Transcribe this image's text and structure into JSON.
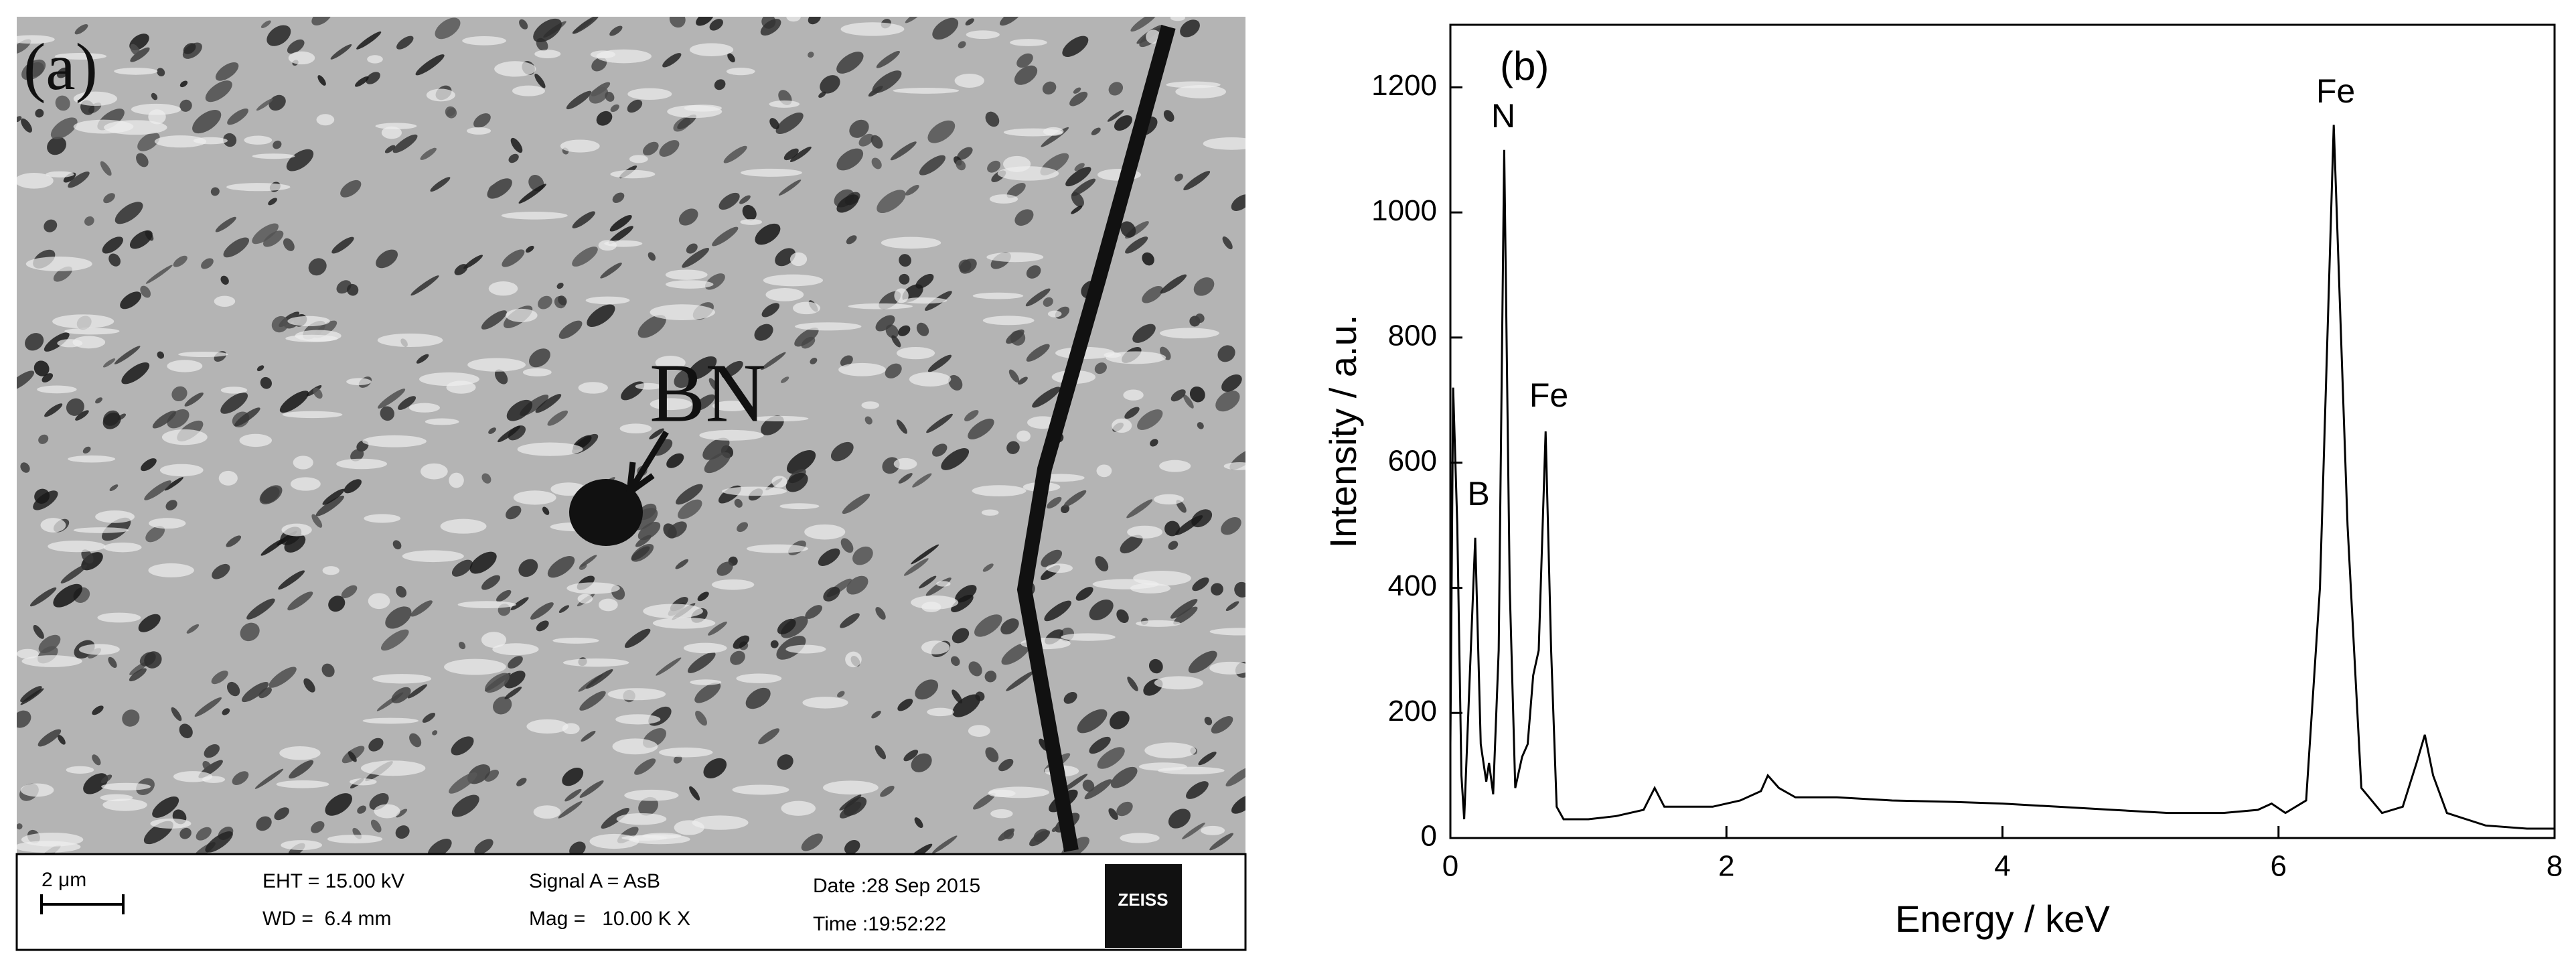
{
  "panel_a": {
    "label": "(a)",
    "annotation": "BN",
    "info_bar": {
      "scale": "2 μm",
      "eht": "EHT = 15.00 kV",
      "wd": "WD =  6.4 mm",
      "signal": "Signal A = AsB",
      "mag": "Mag =   10.00 K X",
      "date": "Date :28 Sep 2015",
      "time": "Time :19:52:22",
      "logo": "ZEISS"
    }
  },
  "chart_data": {
    "type": "line",
    "label": "(b)",
    "xlabel": "Energy / keV",
    "ylabel": "Intensity / a.u.",
    "annotations": [
      "N",
      "B",
      "Fe",
      "Fe"
    ],
    "x": [
      0.0,
      0.02,
      0.05,
      0.08,
      0.1,
      0.13,
      0.18,
      0.22,
      0.26,
      0.28,
      0.31,
      0.35,
      0.39,
      0.43,
      0.47,
      0.52,
      0.56,
      0.6,
      0.64,
      0.69,
      0.73,
      0.77,
      0.82,
      1.0,
      1.2,
      1.4,
      1.48,
      1.55,
      1.7,
      1.9,
      2.1,
      2.25,
      2.3,
      2.38,
      2.5,
      2.8,
      3.2,
      3.6,
      4.0,
      4.4,
      4.8,
      5.2,
      5.6,
      5.85,
      5.95,
      6.05,
      6.2,
      6.3,
      6.4,
      6.5,
      6.6,
      6.75,
      6.9,
      7.0,
      7.06,
      7.12,
      7.22,
      7.5,
      7.8,
      8.0
    ],
    "values": [
      150,
      720,
      500,
      100,
      30,
      200,
      480,
      150,
      90,
      120,
      70,
      300,
      1100,
      400,
      80,
      130,
      150,
      260,
      300,
      650,
      300,
      50,
      30,
      30,
      35,
      45,
      80,
      50,
      50,
      50,
      60,
      75,
      100,
      80,
      65,
      65,
      60,
      58,
      55,
      50,
      45,
      40,
      40,
      45,
      55,
      40,
      60,
      400,
      1140,
      500,
      80,
      40,
      50,
      120,
      165,
      100,
      40,
      20,
      15,
      15
    ],
    "color": "#000000",
    "xlim": [
      0,
      8
    ],
    "xticks": [
      0,
      2,
      4,
      6,
      8
    ],
    "ylim": [
      0,
      1300
    ],
    "yticks": [
      0,
      200,
      400,
      600,
      800,
      1000,
      1200
    ]
  }
}
